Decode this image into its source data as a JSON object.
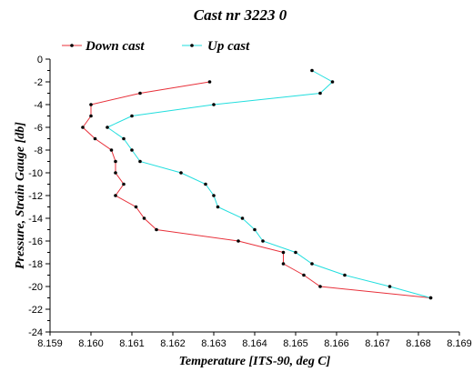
{
  "chart_data": {
    "type": "line",
    "title": "Cast nr 3223 0",
    "xlabel": "Temperature [ITS-90, deg C]",
    "ylabel": "Pressure, Strain Gauge [db]",
    "xlim": [
      8.159,
      8.169
    ],
    "ylim": [
      -24,
      0
    ],
    "xticks": [
      "8.159",
      "8.160",
      "8.161",
      "8.162",
      "8.163",
      "8.164",
      "8.165",
      "8.166",
      "8.167",
      "8.168",
      "8.169"
    ],
    "yticks": [
      "0",
      "-2",
      "-4",
      "-6",
      "-8",
      "-10",
      "-12",
      "-14",
      "-16",
      "-18",
      "-20",
      "-22",
      "-24"
    ],
    "grid": false,
    "legend_position": "top-left",
    "series": [
      {
        "name": "Down cast",
        "color": "#e8303a",
        "points": [
          [
            8.1629,
            -2.0
          ],
          [
            8.1612,
            -3.0
          ],
          [
            8.16,
            -4.0
          ],
          [
            8.16,
            -5.0
          ],
          [
            8.1598,
            -6.0
          ],
          [
            8.1601,
            -7.0
          ],
          [
            8.1605,
            -8.0
          ],
          [
            8.1606,
            -9.0
          ],
          [
            8.1606,
            -10.0
          ],
          [
            8.1608,
            -11.0
          ],
          [
            8.1606,
            -12.0
          ],
          [
            8.1611,
            -13.0
          ],
          [
            8.1613,
            -14.0
          ],
          [
            8.1616,
            -15.0
          ],
          [
            8.1636,
            -16.0
          ],
          [
            8.1647,
            -17.0
          ],
          [
            8.1647,
            -18.0
          ],
          [
            8.1652,
            -19.0
          ],
          [
            8.1656,
            -20.0
          ],
          [
            8.1683,
            -21.0
          ]
        ]
      },
      {
        "name": "Up cast",
        "color": "#22dede",
        "points": [
          [
            8.1683,
            -21.0
          ],
          [
            8.1673,
            -20.0
          ],
          [
            8.1662,
            -19.0
          ],
          [
            8.1654,
            -18.0
          ],
          [
            8.165,
            -17.0
          ],
          [
            8.1642,
            -16.0
          ],
          [
            8.164,
            -15.0
          ],
          [
            8.1637,
            -14.0
          ],
          [
            8.1631,
            -13.0
          ],
          [
            8.163,
            -12.0
          ],
          [
            8.1628,
            -11.0
          ],
          [
            8.1622,
            -10.0
          ],
          [
            8.1612,
            -9.0
          ],
          [
            8.161,
            -8.0
          ],
          [
            8.1608,
            -7.0
          ],
          [
            8.1604,
            -6.0
          ],
          [
            8.161,
            -5.0
          ],
          [
            8.163,
            -4.0
          ],
          [
            8.1656,
            -3.0
          ],
          [
            8.1659,
            -2.0
          ],
          [
            8.1654,
            -1.0
          ]
        ]
      }
    ]
  }
}
